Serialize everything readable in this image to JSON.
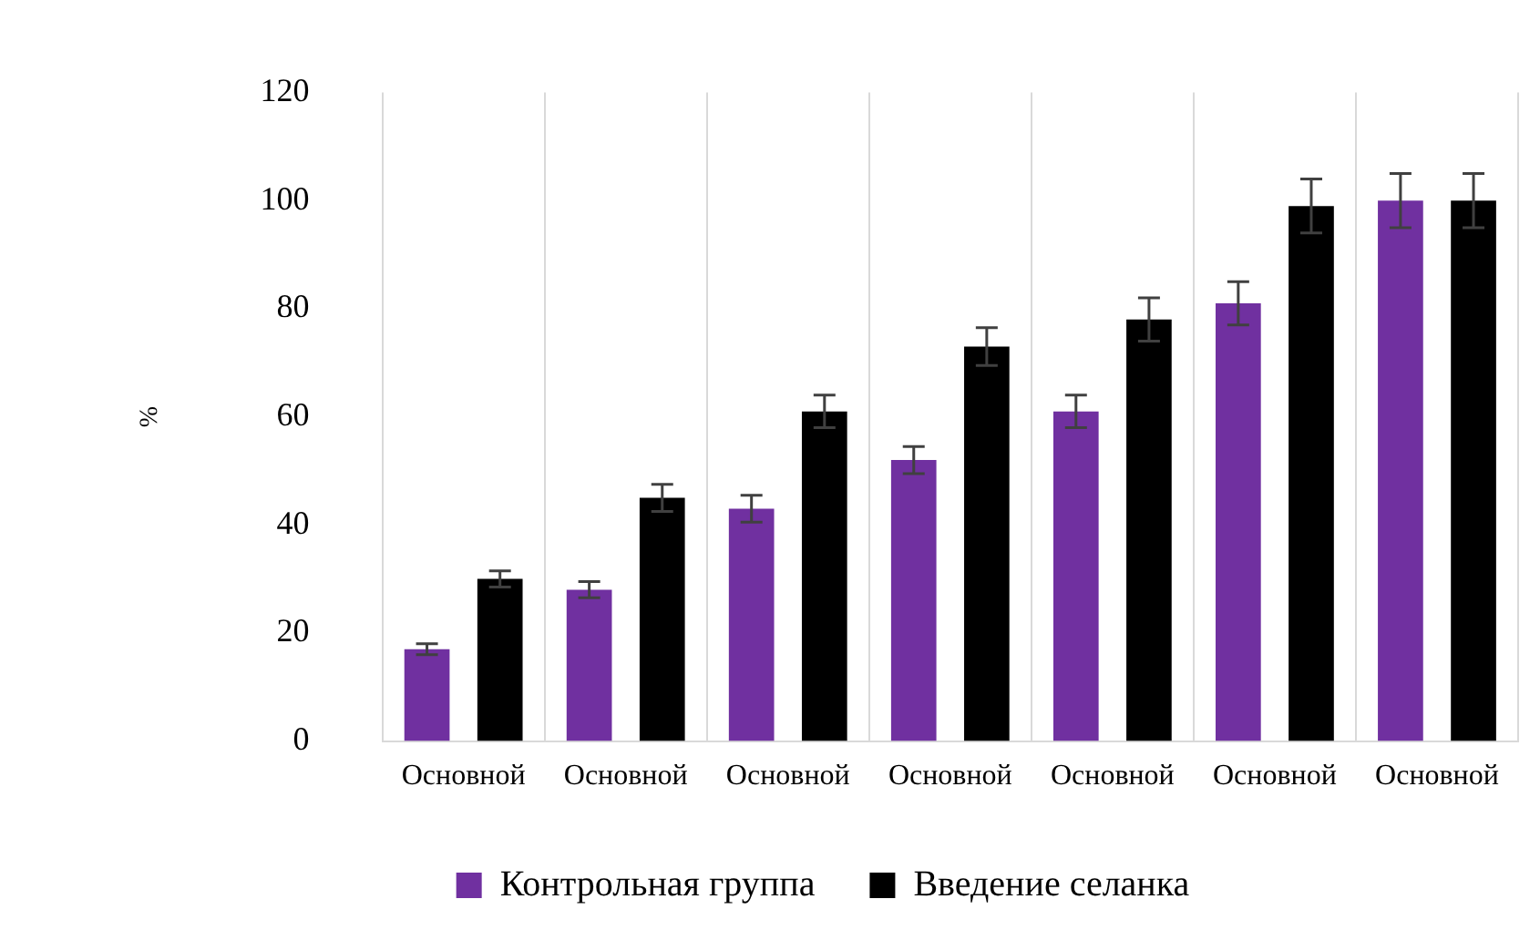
{
  "chart_data": {
    "type": "bar",
    "ylabel": "%",
    "categories": [
      "Основной",
      "Основной",
      "Основной",
      "Основной",
      "Основной",
      "Основной",
      "Основной"
    ],
    "series": [
      {
        "name": "Контрольная группа",
        "color": "#7030a0",
        "values": [
          17,
          28,
          43,
          52,
          61,
          81,
          100
        ],
        "errors": [
          1,
          1.5,
          2.5,
          2.5,
          3,
          4,
          5
        ]
      },
      {
        "name": "Введение селанка",
        "color": "#000000",
        "values": [
          30,
          45,
          61,
          73,
          78,
          99,
          100
        ],
        "errors": [
          1.5,
          2.5,
          3,
          3.5,
          4,
          5,
          5
        ]
      }
    ],
    "ylim": [
      0,
      120
    ],
    "yticks": [
      0,
      20,
      40,
      60,
      80,
      100,
      120
    ],
    "grid": "x",
    "legend": "bottom"
  }
}
